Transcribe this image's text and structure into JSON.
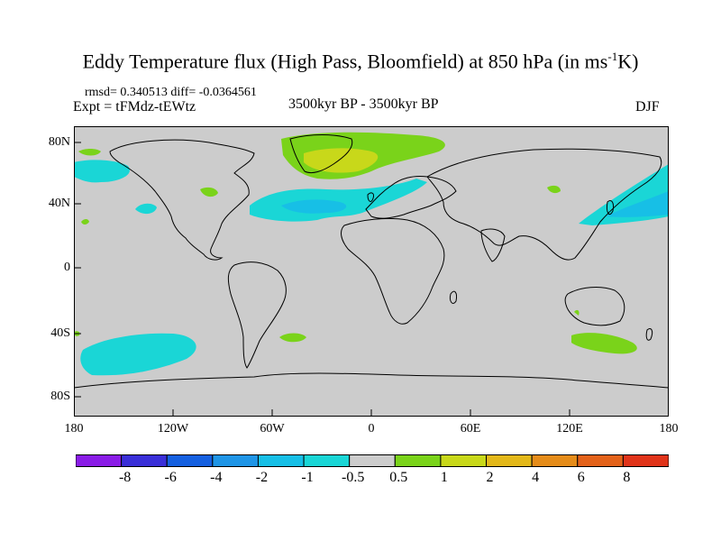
{
  "title": {
    "main": "Eddy Temperature flux (High Pass, Bloomfield) at 850 hPa (in ms",
    "sup": "-1",
    "tail": "K)"
  },
  "stats": {
    "rmsd_line": "rmsd= 0.340513 diff= -0.0364561"
  },
  "experiment": "Expt = tFMdz-tEWtz",
  "period": "3500kyr BP - 3500kyr BP",
  "season": "DJF",
  "map": {
    "land_color": "#cccccc",
    "y_ticks": [
      "80N",
      "40N",
      "0",
      "40S",
      "80S"
    ],
    "x_ticks": [
      "180",
      "120W",
      "60W",
      "0",
      "60E",
      "120E",
      "180"
    ]
  },
  "colorbar": {
    "colors": [
      "#8a1ce6",
      "#3a2fd8",
      "#1560e0",
      "#1f95e6",
      "#17bfe6",
      "#1ad6d6",
      "#cccccc",
      "#7ad31a",
      "#c8d81a",
      "#e3b81a",
      "#e58c1a",
      "#e3621a",
      "#e0341a"
    ],
    "labels": [
      "-8",
      "-6",
      "-4",
      "-2",
      "-1",
      "-0.5",
      "0.5",
      "1",
      "2",
      "4",
      "6",
      "8"
    ]
  }
}
